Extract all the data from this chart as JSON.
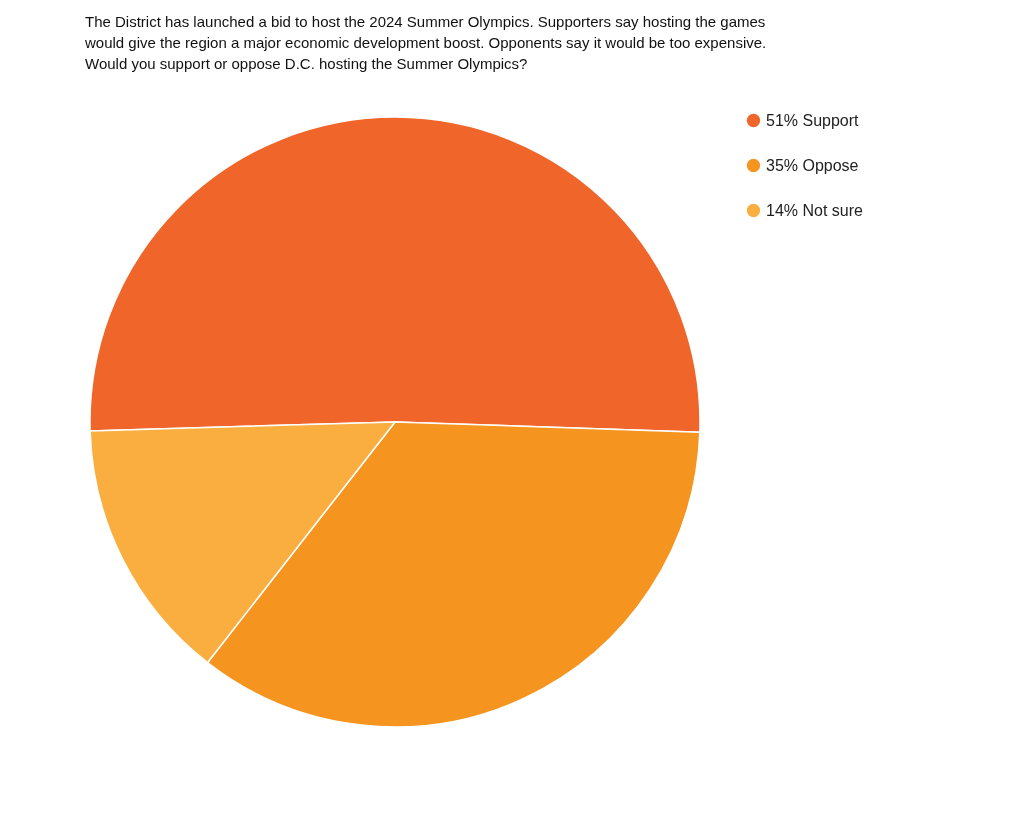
{
  "chart_data": {
    "type": "pie",
    "title": "The District has launched a bid to host the 2024 Summer Olympics. Supporters say hosting the games would give the region a major economic development boost. Opponents say it would be too expensive. Would you support or oppose D.C. hosting the Summer Olympics?",
    "categories": [
      "51% Support",
      "35% Oppose",
      "14% Not sure"
    ],
    "values": [
      51,
      35,
      14
    ],
    "colors": [
      "#f0652a",
      "#f5951f",
      "#f9ae3f"
    ],
    "legend": "right"
  }
}
